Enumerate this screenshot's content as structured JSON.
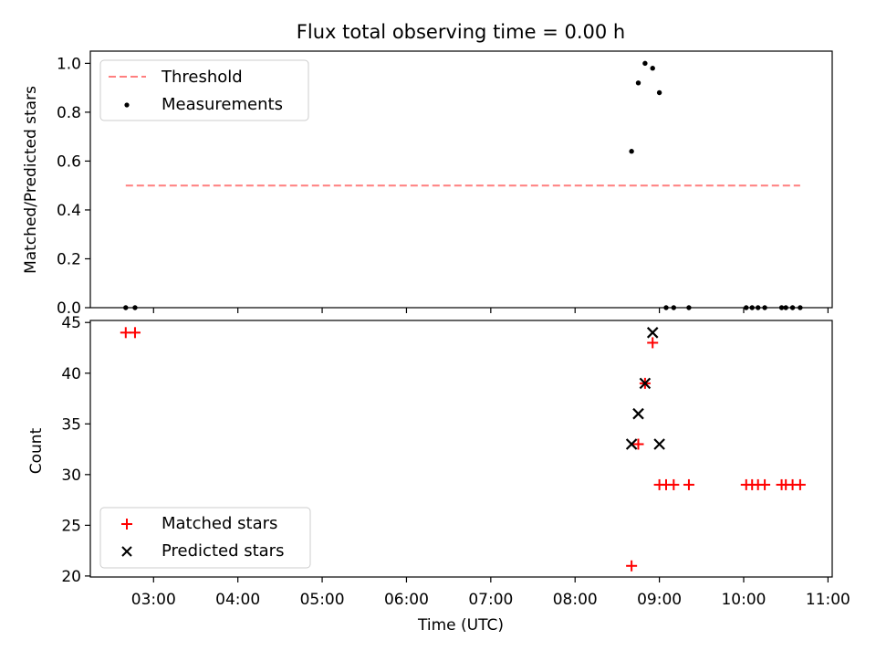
{
  "chart_data": [
    {
      "type": "line",
      "title": "Flux total observing time = 0.00 h",
      "ylabel": "Matched/Predicted stars",
      "xlabel": "",
      "xlim": [
        2.25,
        11.05
      ],
      "ylim": [
        0.0,
        1.05
      ],
      "yticks": [
        0.0,
        0.2,
        0.4,
        0.6,
        0.8,
        1.0
      ],
      "ytick_labels": [
        "0.0",
        "0.2",
        "0.4",
        "0.6",
        "0.8",
        "1.0"
      ],
      "legend_position": "upper-left",
      "series": [
        {
          "name": "Threshold",
          "kind": "line",
          "style": "dashed",
          "color": "#ff7f7f",
          "points": [
            [
              2.67,
              0.5
            ],
            [
              10.67,
              0.5
            ]
          ]
        },
        {
          "name": "Measurements",
          "kind": "scatter",
          "marker": "dot",
          "color": "#000000",
          "points": [
            [
              2.67,
              0.0
            ],
            [
              2.78,
              0.0
            ],
            [
              8.67,
              0.64
            ],
            [
              8.75,
              0.92
            ],
            [
              8.83,
              1.0
            ],
            [
              8.92,
              0.98
            ],
            [
              9.0,
              0.88
            ],
            [
              9.08,
              0.0
            ],
            [
              9.17,
              0.0
            ],
            [
              9.35,
              0.0
            ],
            [
              10.03,
              0.0
            ],
            [
              10.1,
              0.0
            ],
            [
              10.17,
              0.0
            ],
            [
              10.25,
              0.0
            ],
            [
              10.45,
              0.0
            ],
            [
              10.5,
              0.0
            ],
            [
              10.58,
              0.0
            ],
            [
              10.67,
              0.0
            ]
          ]
        }
      ]
    },
    {
      "type": "scatter",
      "title": "",
      "xlabel": "Time (UTC)",
      "ylabel": "Count",
      "xlim": [
        2.25,
        11.05
      ],
      "ylim": [
        19.9,
        45.2
      ],
      "yticks": [
        20,
        25,
        30,
        35,
        40,
        45
      ],
      "ytick_labels": [
        "20",
        "25",
        "30",
        "35",
        "40",
        "45"
      ],
      "xticks": [
        3,
        4,
        5,
        6,
        7,
        8,
        9,
        10,
        11
      ],
      "xtick_labels": [
        "03:00",
        "04:00",
        "05:00",
        "06:00",
        "07:00",
        "08:00",
        "09:00",
        "10:00",
        "11:00"
      ],
      "legend_position": "lower-left",
      "series": [
        {
          "name": "Matched stars",
          "kind": "scatter",
          "marker": "plus",
          "color": "#ff0000",
          "points": [
            [
              2.67,
              44
            ],
            [
              2.78,
              44
            ],
            [
              8.67,
              21
            ],
            [
              8.75,
              33
            ],
            [
              8.83,
              39
            ],
            [
              8.92,
              43
            ],
            [
              9.0,
              29
            ],
            [
              9.08,
              29
            ],
            [
              9.17,
              29
            ],
            [
              9.35,
              29
            ],
            [
              10.03,
              29
            ],
            [
              10.1,
              29
            ],
            [
              10.17,
              29
            ],
            [
              10.25,
              29
            ],
            [
              10.45,
              29
            ],
            [
              10.5,
              29
            ],
            [
              10.58,
              29
            ],
            [
              10.67,
              29
            ]
          ]
        },
        {
          "name": "Predicted stars",
          "kind": "scatter",
          "marker": "x",
          "color": "#000000",
          "points": [
            [
              8.67,
              33
            ],
            [
              8.75,
              36
            ],
            [
              8.83,
              39
            ],
            [
              8.92,
              44
            ],
            [
              9.0,
              33
            ]
          ]
        }
      ]
    }
  ]
}
